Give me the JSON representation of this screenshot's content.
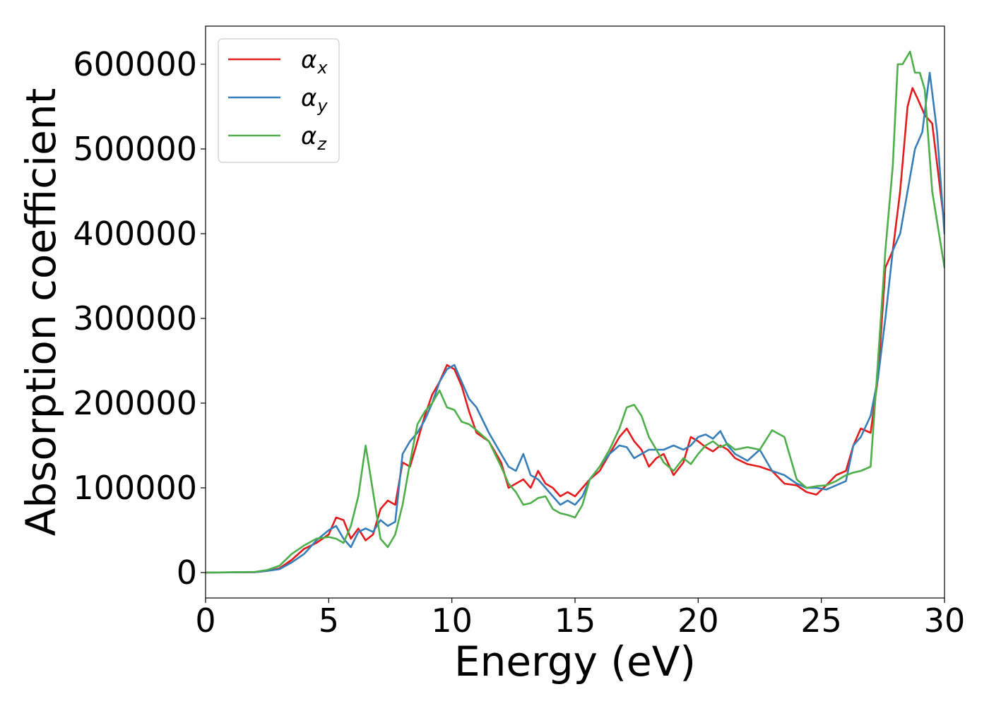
{
  "chart_data": {
    "type": "line",
    "title": "",
    "xlabel": "Energy (eV)",
    "ylabel": "Absorption coefficient",
    "xlim": [
      0,
      30
    ],
    "ylim": [
      -30000,
      645000
    ],
    "xticks": [
      0,
      5,
      10,
      15,
      20,
      25,
      30
    ],
    "yticks": [
      0,
      100000,
      200000,
      300000,
      400000,
      500000,
      600000
    ],
    "grid": false,
    "legend_position": "top-left",
    "series": [
      {
        "name": "αx",
        "symbol": "α",
        "subscript": "x",
        "color": "#e41a1c",
        "x": [
          0,
          2,
          2.5,
          3,
          3.5,
          4,
          4.5,
          5,
          5.3,
          5.6,
          5.9,
          6.2,
          6.5,
          6.8,
          7.1,
          7.4,
          7.7,
          8,
          8.3,
          8.6,
          8.9,
          9.2,
          9.5,
          9.8,
          10.1,
          10.4,
          10.7,
          11,
          11.5,
          12,
          12.3,
          12.6,
          12.9,
          13.2,
          13.5,
          13.8,
          14.1,
          14.4,
          14.7,
          15,
          15.3,
          15.6,
          16,
          16.4,
          16.8,
          17.1,
          17.4,
          17.7,
          18,
          18.3,
          18.6,
          19,
          19.4,
          19.7,
          20,
          20.3,
          20.6,
          20.9,
          21.2,
          21.5,
          22,
          22.5,
          23,
          23.5,
          24,
          24.4,
          24.8,
          25.2,
          25.6,
          26,
          26.3,
          26.6,
          27,
          27.3,
          27.6,
          27.9,
          28.2,
          28.5,
          28.7,
          28.9,
          29.2,
          29.5,
          30
        ],
        "y": [
          0,
          500,
          2000,
          5000,
          15000,
          28000,
          35000,
          45000,
          65000,
          62000,
          40000,
          52000,
          38000,
          45000,
          75000,
          85000,
          80000,
          130000,
          125000,
          155000,
          185000,
          210000,
          225000,
          245000,
          240000,
          220000,
          190000,
          165000,
          155000,
          130000,
          100000,
          105000,
          110000,
          100000,
          120000,
          105000,
          100000,
          90000,
          95000,
          90000,
          100000,
          110000,
          120000,
          140000,
          160000,
          170000,
          155000,
          145000,
          125000,
          135000,
          140000,
          115000,
          130000,
          160000,
          155000,
          148000,
          143000,
          150000,
          145000,
          135000,
          128000,
          125000,
          120000,
          105000,
          103000,
          95000,
          92000,
          103000,
          115000,
          120000,
          150000,
          170000,
          165000,
          230000,
          360000,
          380000,
          450000,
          550000,
          572000,
          560000,
          540000,
          530000,
          410000
        ]
      },
      {
        "name": "αy",
        "symbol": "α",
        "subscript": "y",
        "color": "#377eb8",
        "x": [
          0,
          2,
          2.5,
          3,
          3.5,
          4,
          4.5,
          5,
          5.3,
          5.6,
          5.9,
          6.2,
          6.5,
          6.8,
          7.1,
          7.4,
          7.7,
          8,
          8.3,
          8.6,
          8.9,
          9.2,
          9.5,
          9.8,
          10.1,
          10.4,
          10.7,
          11,
          11.5,
          12,
          12.3,
          12.6,
          12.9,
          13.2,
          13.5,
          13.8,
          14.1,
          14.4,
          14.7,
          15,
          15.3,
          15.6,
          16,
          16.4,
          16.8,
          17.1,
          17.4,
          17.7,
          18,
          18.3,
          18.6,
          19,
          19.4,
          19.7,
          20,
          20.3,
          20.6,
          20.9,
          21.2,
          21.5,
          22,
          22.5,
          23,
          23.5,
          24,
          24.4,
          24.8,
          25.2,
          25.6,
          26,
          26.3,
          26.6,
          27,
          27.3,
          27.6,
          27.9,
          28.2,
          28.5,
          28.8,
          29.1,
          29.4,
          29.7,
          30
        ],
        "y": [
          0,
          500,
          2000,
          4000,
          12000,
          22000,
          38000,
          50000,
          55000,
          40000,
          30000,
          48000,
          52000,
          48000,
          62000,
          55000,
          60000,
          140000,
          155000,
          165000,
          180000,
          200000,
          225000,
          240000,
          245000,
          225000,
          205000,
          195000,
          165000,
          140000,
          125000,
          120000,
          140000,
          115000,
          110000,
          100000,
          90000,
          80000,
          85000,
          80000,
          90000,
          110000,
          125000,
          140000,
          150000,
          148000,
          135000,
          140000,
          145000,
          145000,
          145000,
          150000,
          145000,
          150000,
          160000,
          163000,
          158000,
          167000,
          150000,
          140000,
          132000,
          145000,
          120000,
          115000,
          105000,
          100000,
          100000,
          98000,
          103000,
          108000,
          150000,
          160000,
          185000,
          230000,
          300000,
          380000,
          400000,
          450000,
          500000,
          520000,
          590000,
          520000,
          400000
        ]
      },
      {
        "name": "αz",
        "symbol": "α",
        "subscript": "z",
        "color": "#4daf4a",
        "x": [
          0,
          2,
          2.5,
          3,
          3.5,
          4,
          4.5,
          5,
          5.3,
          5.6,
          5.9,
          6.2,
          6.5,
          6.8,
          7.1,
          7.4,
          7.7,
          8,
          8.3,
          8.6,
          8.9,
          9.2,
          9.5,
          9.8,
          10.1,
          10.4,
          10.7,
          11,
          11.5,
          12,
          12.3,
          12.6,
          12.9,
          13.2,
          13.5,
          13.8,
          14.1,
          14.4,
          14.7,
          15,
          15.3,
          15.6,
          16,
          16.4,
          16.8,
          17.1,
          17.4,
          17.7,
          18,
          18.3,
          18.6,
          19,
          19.4,
          19.7,
          20,
          20.3,
          20.6,
          20.9,
          21.2,
          21.5,
          22,
          22.5,
          23,
          23.5,
          24,
          24.4,
          24.8,
          25.2,
          25.6,
          26,
          26.3,
          26.6,
          27,
          27.3,
          27.6,
          27.9,
          28.1,
          28.3,
          28.6,
          28.8,
          29,
          29.2,
          29.5,
          30
        ],
        "y": [
          0,
          800,
          3000,
          8000,
          22000,
          32000,
          40000,
          42000,
          40000,
          35000,
          55000,
          90000,
          150000,
          95000,
          40000,
          30000,
          45000,
          80000,
          130000,
          175000,
          190000,
          200000,
          215000,
          195000,
          192000,
          178000,
          175000,
          168000,
          155000,
          125000,
          105000,
          95000,
          80000,
          82000,
          88000,
          90000,
          75000,
          70000,
          68000,
          65000,
          80000,
          110000,
          125000,
          145000,
          170000,
          195000,
          198000,
          185000,
          160000,
          145000,
          130000,
          120000,
          135000,
          128000,
          140000,
          150000,
          155000,
          148000,
          152000,
          145000,
          148000,
          145000,
          168000,
          160000,
          110000,
          100000,
          102000,
          103000,
          108000,
          115000,
          118000,
          120000,
          125000,
          250000,
          380000,
          480000,
          600000,
          600000,
          615000,
          590000,
          590000,
          570000,
          450000,
          360000
        ]
      }
    ]
  }
}
